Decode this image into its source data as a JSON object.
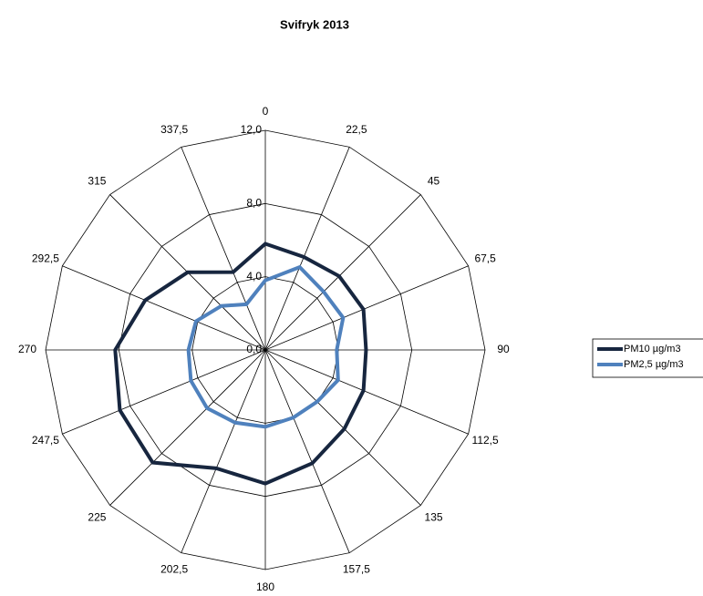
{
  "chart_data": {
    "type": "radar",
    "title": "Svifryk 2013",
    "categories": [
      "0",
      "22,5",
      "45",
      "67,5",
      "90",
      "112,5",
      "135",
      "157,5",
      "180",
      "202,5",
      "225",
      "247,5",
      "270",
      "292,5",
      "315",
      "337,5"
    ],
    "ylim": [
      0,
      12
    ],
    "yticks": [
      {
        "value": 0,
        "label": "0,0"
      },
      {
        "value": 4,
        "label": "4,0"
      },
      {
        "value": 8,
        "label": "8,0"
      },
      {
        "value": 12,
        "label": "12,0"
      }
    ],
    "series": [
      {
        "name": "PM10 µg/m3",
        "color": "#17263f",
        "values": [
          5.8,
          5.5,
          5.7,
          5.8,
          5.5,
          5.8,
          6.1,
          6.7,
          7.3,
          7.0,
          8.7,
          8.6,
          8.2,
          7.1,
          6.0,
          4.6
        ]
      },
      {
        "name": "PM2,5 µg/m3",
        "color": "#4f81bd",
        "values": [
          3.8,
          4.9,
          4.5,
          4.6,
          3.9,
          4.3,
          4.0,
          4.0,
          4.2,
          4.3,
          4.5,
          4.4,
          4.2,
          4.1,
          3.4,
          2.7
        ]
      }
    ]
  }
}
